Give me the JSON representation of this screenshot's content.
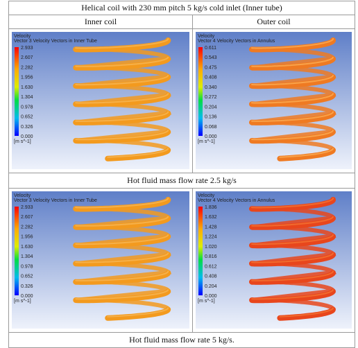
{
  "header": {
    "title": "Helical coil with 230 mm pitch 5 kg/s cold inlet (Inner tube)"
  },
  "table": {
    "columns": [
      "Inner coil",
      "Outer coil"
    ],
    "rows": [
      {
        "panels": [
          {
            "title": "Velocity",
            "subtitle": "Vector 3 Velocity Vectors in Inner Tube",
            "legend": [
              "2.933",
              "2.607",
              "2.282",
              "1.956",
              "1.630",
              "1.304",
              "0.978",
              "0.652",
              "0.326",
              "0.000"
            ],
            "unit": "[m s^-1]"
          },
          {
            "title": "Velocity",
            "subtitle": "Vector 4 Velocity Vectors in Annulus",
            "legend": [
              "0.611",
              "0.543",
              "0.475",
              "0.408",
              "0.340",
              "0.272",
              "0.204",
              "0.136",
              "0.068",
              "0.000"
            ],
            "unit": "[m s^-1]"
          }
        ],
        "caption": "Hot fluid  mass flow rate 2.5 kg/s"
      },
      {
        "panels": [
          {
            "title": "Velocity",
            "subtitle": "Vector 3 Velocity Vectors in Inner Tube",
            "legend": [
              "2.933",
              "2.607",
              "2.282",
              "1.956",
              "1.630",
              "1.304",
              "0.978",
              "0.652",
              "0.326",
              "0.000"
            ],
            "unit": "[m s^-1]"
          },
          {
            "title": "Velocity",
            "subtitle": "Vector 4 Velocity Vectors in Annulus",
            "legend": [
              "1.836",
              "1.632",
              "1.428",
              "1.224",
              "1.020",
              "0.816",
              "0.612",
              "0.408",
              "0.204",
              "0.000"
            ],
            "unit": "[m s^-1]"
          }
        ],
        "caption": "Hot fluid  mass flow rate 5 kg/s."
      }
    ]
  }
}
